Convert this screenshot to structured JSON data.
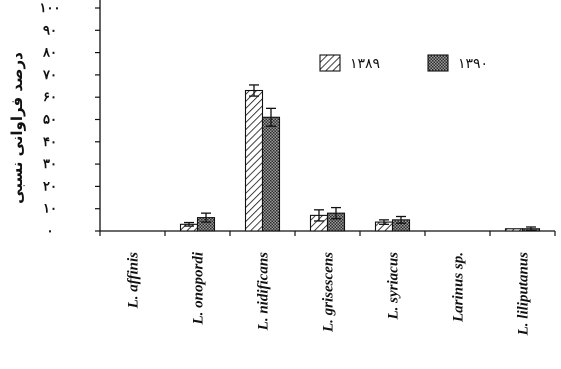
{
  "chart_data": {
    "type": "bar",
    "categories": [
      "L. affinis",
      "L. onopordi",
      "L. nidificans",
      "L. grisescens",
      "L. syriacus",
      "Larinus sp.",
      "L. liliputanus"
    ],
    "series": [
      {
        "name": "۱۳۸۹",
        "values": [
          0,
          3,
          63,
          7,
          4,
          0,
          1
        ],
        "errors": [
          0,
          0.8,
          2.5,
          2.5,
          1,
          0,
          0
        ]
      },
      {
        "name": "۱۳۹۰",
        "values": [
          0,
          6,
          51,
          8,
          5,
          0,
          1
        ],
        "errors": [
          0,
          2,
          4,
          2.5,
          1.5,
          0,
          0.8
        ]
      }
    ],
    "ylabel": "درصد فراوانی نسبی",
    "ylim": [
      0,
      100
    ],
    "yticks": [
      "۰",
      "۱۰",
      "۲۰",
      "۳۰",
      "۴۰",
      "۵۰",
      "۶۰",
      "۷۰",
      "۸۰",
      "۹۰",
      "۱۰۰"
    ],
    "legend_position": "top-right",
    "grid": false
  }
}
